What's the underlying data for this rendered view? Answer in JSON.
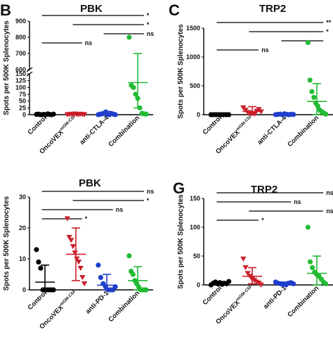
{
  "chart_data": [
    {
      "panel": "B",
      "title": "PBK",
      "type": "scatter",
      "ylabel": "Spots per 500K Splenocytes",
      "ylim": [
        0,
        900
      ],
      "y_axis_break": true,
      "y_ticks": [
        "0",
        "25",
        "50",
        "75",
        "100",
        "125",
        "150",
        "600",
        "700",
        "800",
        "900"
      ],
      "categories": [
        {
          "label": "Control",
          "sup": ""
        },
        {
          "label": "OncoVEX",
          "sup": "mGM-CSF"
        },
        {
          "label": "anti-CTLA-4",
          "sup": ""
        },
        {
          "label": "Combination",
          "sup": ""
        }
      ],
      "series": [
        {
          "values": [
            1,
            2,
            0,
            0,
            1,
            0,
            3,
            1,
            0,
            2
          ],
          "color": "#000000",
          "marker": "circle",
          "mean": 2,
          "sd": [
            0,
            5
          ]
        },
        {
          "values": [
            0,
            1,
            2,
            0,
            3,
            1,
            0,
            2,
            1,
            0
          ],
          "color": "#cc1f2a",
          "marker": "triangle-down",
          "mean": 2,
          "sd": [
            0,
            6
          ]
        },
        {
          "values": [
            0,
            2,
            3,
            5,
            10,
            1,
            0,
            4,
            2,
            0
          ],
          "color": "#1f3fcc",
          "marker": "circle",
          "mean": 4,
          "sd": [
            0,
            12
          ]
        },
        {
          "values": [
            800,
            108,
            100,
            75,
            60,
            25,
            5,
            3,
            2
          ],
          "color": "#22bb33",
          "marker": "circle",
          "mean": 118,
          "sd": [
            25,
            700
          ]
        }
      ],
      "comparisons": [
        {
          "from": 0,
          "to": 3,
          "label": "*"
        },
        {
          "from": 1,
          "to": 3,
          "label": "*"
        },
        {
          "from": 2,
          "to": 3,
          "label": "ns"
        },
        {
          "from": 0,
          "to": 1,
          "label": "ns"
        }
      ]
    },
    {
      "panel": "C",
      "title": "TRP2",
      "type": "scatter",
      "ylabel": "Spots per 500K Splenocytes",
      "ylim": [
        0,
        1500
      ],
      "y_ticks": [
        "0",
        "500",
        "1000",
        "1500"
      ],
      "categories": [
        {
          "label": "Control",
          "sup": ""
        },
        {
          "label": "OncoVEX",
          "sup": "mGM-CSF"
        },
        {
          "label": "anti-CTLA-4",
          "sup": ""
        },
        {
          "label": "Combination",
          "sup": ""
        }
      ],
      "series": [
        {
          "values": [
            0,
            0,
            0,
            0,
            0,
            0,
            0,
            0
          ],
          "color": "#000000",
          "marker": "circle",
          "mean": 0,
          "sd": [
            0,
            0
          ]
        },
        {
          "values": [
            120,
            80,
            40,
            30,
            20,
            10,
            60,
            90,
            50
          ],
          "color": "#cc1f2a",
          "marker": "triangle-down",
          "mean": 55,
          "sd": [
            0,
            140
          ]
        },
        {
          "values": [
            0,
            5,
            10,
            0,
            15,
            5,
            0,
            8,
            3
          ],
          "color": "#1f3fcc",
          "marker": "circle",
          "mean": 5,
          "sd": [
            0,
            15
          ]
        },
        {
          "values": [
            1250,
            600,
            400,
            300,
            200,
            150,
            80,
            50,
            30,
            10
          ],
          "color": "#22bb33",
          "marker": "circle",
          "mean": 230,
          "sd": [
            0,
            540
          ]
        }
      ],
      "comparisons": [
        {
          "from": 0,
          "to": 3,
          "label": "**"
        },
        {
          "from": 1,
          "to": 3,
          "label": "*"
        },
        {
          "from": 2,
          "to": 3,
          "label": ""
        },
        {
          "from": 0,
          "to": 1,
          "label": "ns"
        }
      ]
    },
    {
      "panel": "",
      "title": "PBK",
      "type": "scatter",
      "ylabel": "Spots per 500K Splenocytes",
      "ylim": [
        0,
        30
      ],
      "y_ticks": [
        "0",
        "10",
        "20",
        "30"
      ],
      "categories": [
        {
          "label": "Control",
          "sup": ""
        },
        {
          "label": "OncoVEX",
          "sup": "mGM-CSF"
        },
        {
          "label": "anti-PD-1",
          "sup": ""
        },
        {
          "label": "Combination",
          "sup": ""
        }
      ],
      "series": [
        {
          "values": [
            13,
            9,
            7,
            0,
            0,
            0,
            0,
            0,
            0
          ],
          "color": "#000000",
          "marker": "circle",
          "mean": 2.5,
          "sd": [
            0,
            8
          ]
        },
        {
          "values": [
            23,
            17,
            16,
            14,
            12,
            10,
            9,
            7,
            4,
            2
          ],
          "color": "#cc1f2a",
          "marker": "triangle-down",
          "mean": 11.5,
          "sd": [
            3,
            20
          ]
        },
        {
          "values": [
            8,
            4,
            2,
            1,
            0,
            0,
            0,
            1
          ],
          "color": "#1f3fcc",
          "marker": "circle",
          "mean": 1.5,
          "sd": [
            0,
            5
          ]
        },
        {
          "values": [
            11,
            6,
            5,
            3,
            2,
            1,
            0,
            0,
            0,
            0
          ],
          "color": "#22bb33",
          "marker": "circle",
          "mean": 3,
          "sd": [
            0,
            7.5
          ]
        }
      ],
      "comparisons": [
        {
          "from": 0,
          "to": 3,
          "label": "ns"
        },
        {
          "from": 1,
          "to": 3,
          "label": "*"
        },
        {
          "from": 0,
          "to": 2,
          "label": "ns"
        },
        {
          "from": 0,
          "to": 1,
          "label": "*"
        }
      ]
    },
    {
      "panel": "G",
      "title": "TRP2",
      "type": "scatter",
      "ylabel": "Spots per 500K Splenocytes",
      "ylim": [
        0,
        150
      ],
      "y_ticks": [
        "0",
        "50",
        "100",
        "150"
      ],
      "categories": [
        {
          "label": "Control",
          "sup": ""
        },
        {
          "label": "OncoVEX",
          "sup": "mGM-CSF"
        },
        {
          "label": "anti-PD-1",
          "sup": ""
        },
        {
          "label": "Combination",
          "sup": ""
        }
      ],
      "series": [
        {
          "values": [
            0,
            3,
            5,
            2,
            4,
            1,
            3,
            2,
            6
          ],
          "color": "#000000",
          "marker": "circle",
          "mean": 3,
          "sd": [
            0,
            6
          ]
        },
        {
          "values": [
            45,
            30,
            20,
            15,
            10,
            8,
            5,
            3,
            0
          ],
          "color": "#cc1f2a",
          "marker": "triangle-down",
          "mean": 15,
          "sd": [
            2,
            30
          ]
        },
        {
          "values": [
            5,
            3,
            2,
            1,
            0,
            3,
            4,
            2
          ],
          "color": "#1f3fcc",
          "marker": "circle",
          "mean": 2,
          "sd": [
            0,
            5
          ]
        },
        {
          "values": [
            100,
            40,
            30,
            22,
            18,
            15,
            10,
            5,
            2
          ],
          "color": "#22bb33",
          "marker": "circle",
          "mean": 20,
          "sd": [
            0,
            50
          ]
        }
      ],
      "comparisons": [
        {
          "from": 0,
          "to": 3,
          "label": "ns"
        },
        {
          "from": 0,
          "to": 2,
          "label": "ns"
        },
        {
          "from": 1,
          "to": 3,
          "label": "ns"
        },
        {
          "from": 0,
          "to": 1,
          "label": "*"
        }
      ]
    }
  ]
}
